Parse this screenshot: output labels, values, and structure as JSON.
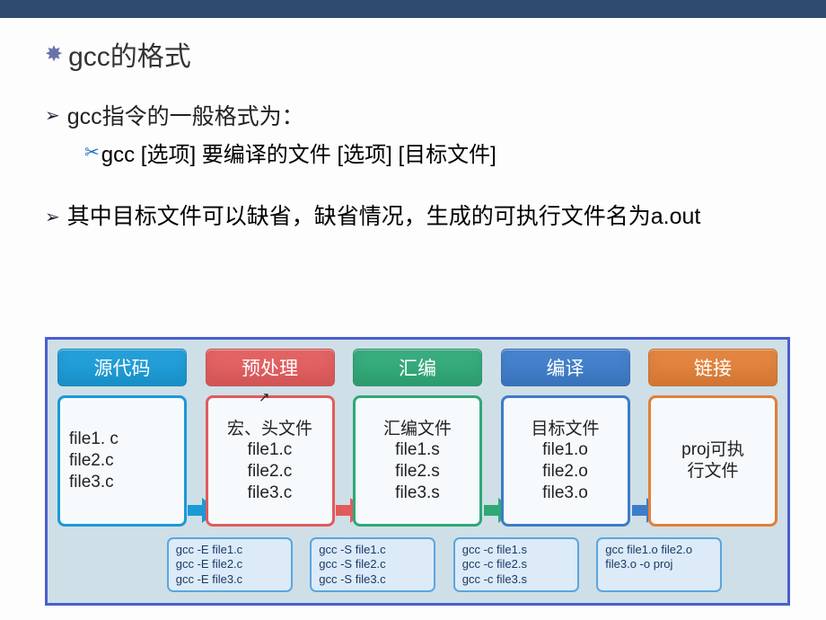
{
  "title": "gcc的格式",
  "bullet1": "gcc指令的一般格式为：",
  "sub1": "gcc   [选项]   要编译的文件   [选项]    [目标文件]",
  "bullet2": "其中目标文件可以缺省，缺省情况，生成的可执行文件名为a.out",
  "colors": {
    "topbar": "#2d4a6f",
    "diagram_border": "#4a5fcf",
    "diagram_bg": "#cfdfe7",
    "cmd_box_bg": "#dcebf7",
    "cmd_box_border": "#5aa6e0"
  },
  "stages": [
    {
      "header": "源代码",
      "header_color": "#1a9ad6",
      "box_border": "#1a9ad6",
      "box_title": "",
      "lines": [
        "file1. c",
        "file2.c",
        "file3.c"
      ],
      "arrow_color": "#1a9ad6"
    },
    {
      "header": "预处理",
      "header_color": "#e25b5b",
      "box_border": "#e25b5b",
      "box_title": "宏、头文件",
      "lines": [
        "file1.c",
        "file2.c",
        "file3.c"
      ],
      "arrow_color": "#e25b5b",
      "show_cursor": true
    },
    {
      "header": "汇编",
      "header_color": "#2fa877",
      "box_border": "#2fa877",
      "box_title": "汇编文件",
      "lines": [
        "file1.s",
        "file2.s",
        "file3.s"
      ],
      "arrow_color": "#2fa877"
    },
    {
      "header": "编译",
      "header_color": "#3d7cc9",
      "box_border": "#3d7cc9",
      "box_title": "目标文件",
      "lines": [
        "file1.o",
        "file2.o",
        "file3.o"
      ],
      "arrow_color": "#3d7cc9"
    },
    {
      "header": "链接",
      "header_color": "#e27f37",
      "box_border": "#e27f37",
      "box_title": "",
      "lines": [
        "proj可执",
        "行文件"
      ],
      "arrow_color": ""
    }
  ],
  "commands": [
    {
      "lines": [
        "gcc -E file1.c",
        "gcc -E file2.c",
        "gcc -E file3.c"
      ]
    },
    {
      "lines": [
        "gcc -S file1.c",
        "gcc -S file2.c",
        "gcc -S file3.c"
      ]
    },
    {
      "lines": [
        "gcc -c file1.s",
        "gcc -c file2.s",
        "gcc -c file3.s"
      ]
    },
    {
      "lines": [
        "gcc file1.o file2.o",
        "file3.o -o proj"
      ]
    }
  ]
}
